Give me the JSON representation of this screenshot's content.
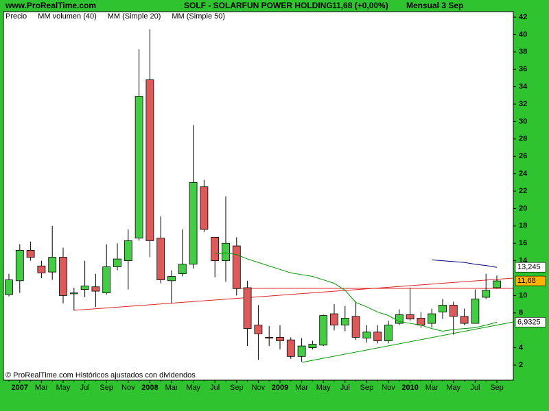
{
  "chart_data": {
    "type": "candlestick",
    "site": "www.ProRealTime.com",
    "title": "SOLF - SOLARFUN POWER HOLDING",
    "quote": "11,68 (+0,00%)",
    "period": "Mensual  3 Sep",
    "footer": "© ProRealTime.com Históricos ajustados con dividendos",
    "categories": [
      null,
      "2007",
      null,
      "Mar",
      null,
      "May",
      null,
      "Jul",
      null,
      "Sep",
      null,
      "Nov",
      null,
      "2008",
      null,
      "Mar",
      null,
      "May",
      null,
      "Jul",
      null,
      "Sep",
      null,
      "Nov",
      null,
      "2009",
      null,
      "Mar",
      null,
      "May",
      null,
      "Jul",
      null,
      "Sep",
      null,
      "Nov",
      null,
      "2010",
      null,
      "Mar",
      null,
      "May",
      null,
      "Jul",
      null,
      "Sep"
    ],
    "ylim": [
      0.27,
      42.63
    ],
    "yticks": [
      2,
      4,
      8,
      10,
      14,
      16,
      18,
      20,
      22,
      24,
      26,
      28,
      30,
      32,
      34,
      36,
      38,
      40,
      42
    ],
    "series": [
      {
        "name": "Precio",
        "color": "#000000",
        "up_color": "#44cc44",
        "down_color": "#dd5a5a",
        "open": [
          10.1,
          11.7,
          15.2,
          13.4,
          12.7,
          14.4,
          10.2,
          10.7,
          11.0,
          10.3,
          13.3,
          14.0,
          16.6,
          34.8,
          16.6,
          11.7,
          12.5,
          13.6,
          22.5,
          16.7,
          14.0,
          15.7,
          10.9,
          6.6,
          5.2,
          5.2,
          4.9,
          3.0,
          4.0,
          4.3,
          7.9,
          6.6,
          7.6,
          5.1,
          5.8,
          4.8,
          6.8,
          7.8,
          7.4,
          6.8,
          8.1,
          8.9,
          7.6,
          6.8,
          9.8,
          10.9
        ],
        "high": [
          12.5,
          15.9,
          16.2,
          14.0,
          18.0,
          15.5,
          10.9,
          14.0,
          12.5,
          15.9,
          16.0,
          17.6,
          38.3,
          40.6,
          19.1,
          12.9,
          17.6,
          29.6,
          23.3,
          16.7,
          21.4,
          16.7,
          11.7,
          8.9,
          6.5,
          6.6,
          5.2,
          5.1,
          4.8,
          7.8,
          9.0,
          8.8,
          9.3,
          6.6,
          6.6,
          7.1,
          8.4,
          10.9,
          8.1,
          8.5,
          9.6,
          9.3,
          8.5,
          10.7,
          12.5,
          12.3
        ],
        "low": [
          9.9,
          10.3,
          14.0,
          12.0,
          11.8,
          9.1,
          8.3,
          9.8,
          8.7,
          10.1,
          12.9,
          10.7,
          16.3,
          14.4,
          11.4,
          9.1,
          12.2,
          13.1,
          17.3,
          12.1,
          11.6,
          10.0,
          4.2,
          2.6,
          4.2,
          3.8,
          2.7,
          2.4,
          3.8,
          4.2,
          6.0,
          5.9,
          4.9,
          4.6,
          4.5,
          4.5,
          6.6,
          7.1,
          6.3,
          6.3,
          7.3,
          5.5,
          6.6,
          6.8,
          9.6,
          10.8
        ],
        "close": [
          11.8,
          15.2,
          14.4,
          12.6,
          14.4,
          10.0,
          10.3,
          11.1,
          10.5,
          13.3,
          14.2,
          16.3,
          32.9,
          16.3,
          11.8,
          12.2,
          13.6,
          23.0,
          17.6,
          14.0,
          16.0,
          10.8,
          6.2,
          5.6,
          5.1,
          4.8,
          3.0,
          4.2,
          4.4,
          7.7,
          6.6,
          7.4,
          5.2,
          5.8,
          4.8,
          6.6,
          7.8,
          7.3,
          6.6,
          7.9,
          8.9,
          7.6,
          6.8,
          9.6,
          10.6,
          11.68
        ],
        "close_labels": [
          null,
          null,
          null,
          null,
          null,
          null,
          null,
          null,
          null,
          null,
          null,
          null,
          null,
          null,
          null,
          null,
          null,
          null,
          null,
          null,
          null,
          null,
          null,
          null,
          null,
          null,
          null,
          null,
          null,
          null,
          null,
          null,
          null,
          null,
          null,
          null,
          null,
          null,
          null,
          null,
          null,
          null,
          null,
          null,
          null,
          "11,68"
        ]
      },
      {
        "name": "MM volumen (40)",
        "color": "#000080",
        "values": [
          null,
          null,
          null,
          null,
          null,
          null,
          null,
          null,
          null,
          null,
          null,
          null,
          null,
          null,
          null,
          null,
          null,
          null,
          null,
          null,
          null,
          null,
          null,
          null,
          null,
          null,
          null,
          null,
          null,
          null,
          null,
          null,
          null,
          null,
          null,
          null,
          null,
          null,
          null,
          14.1,
          14.0,
          13.9,
          13.8,
          13.6,
          13.45,
          13.245
        ],
        "value_labels": [
          null,
          null,
          null,
          null,
          null,
          null,
          null,
          null,
          null,
          null,
          null,
          null,
          null,
          null,
          null,
          null,
          null,
          null,
          null,
          null,
          null,
          null,
          null,
          null,
          null,
          null,
          null,
          null,
          null,
          null,
          null,
          null,
          null,
          null,
          null,
          null,
          null,
          null,
          null,
          null,
          null,
          null,
          null,
          null,
          null,
          "13,245"
        ]
      },
      {
        "name": "MM (Simple 20)",
        "color": "#009900",
        "values": [
          null,
          null,
          null,
          null,
          null,
          null,
          null,
          null,
          null,
          null,
          null,
          null,
          null,
          null,
          null,
          null,
          null,
          null,
          null,
          14.8,
          14.9,
          14.7,
          14.2,
          13.8,
          13.4,
          13.0,
          12.6,
          12.4,
          12.2,
          11.8,
          11.4,
          10.6,
          9.2,
          8.7,
          8.1,
          7.7,
          7.0,
          6.8,
          6.6,
          6.2,
          5.9,
          6.1,
          6.2,
          6.3,
          6.6,
          6.9325
        ],
        "value_labels": [
          null,
          null,
          null,
          null,
          null,
          null,
          null,
          null,
          null,
          null,
          null,
          null,
          null,
          null,
          null,
          null,
          null,
          null,
          null,
          null,
          null,
          null,
          null,
          null,
          null,
          null,
          null,
          null,
          null,
          null,
          null,
          null,
          null,
          null,
          null,
          null,
          null,
          null,
          null,
          null,
          null,
          null,
          null,
          null,
          null,
          "6,9325"
        ]
      },
      {
        "name": "MM (Simple 50)",
        "color": "#ff3333",
        "values": [
          null,
          null,
          null,
          null,
          null,
          null,
          null,
          null,
          null,
          null,
          null,
          null,
          null,
          null,
          null,
          null,
          null,
          null,
          null,
          null,
          null,
          null,
          null,
          null,
          null,
          null,
          null,
          null,
          null,
          null,
          null,
          null,
          null,
          null,
          null,
          null,
          null,
          null,
          null,
          null,
          null,
          null,
          null,
          null,
          null,
          null
        ]
      }
    ]
  }
}
